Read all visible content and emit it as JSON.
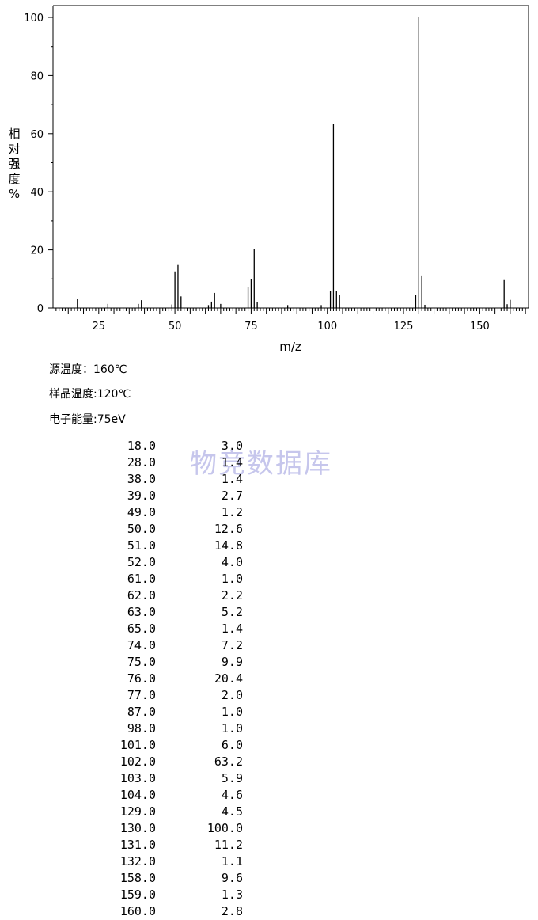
{
  "chart_data": {
    "type": "bar",
    "xlabel": "m/z",
    "ylabel": "相对强度%",
    "xlim": [
      10,
      166
    ],
    "ylim": [
      0,
      100
    ],
    "xticks": [
      25,
      50,
      75,
      100,
      125,
      150
    ],
    "yticks": [
      0,
      20,
      40,
      60,
      80,
      100
    ],
    "grid": false,
    "x": [
      18,
      28,
      38,
      39,
      49,
      50,
      51,
      52,
      61,
      62,
      63,
      65,
      74,
      75,
      76,
      77,
      87,
      98,
      101,
      102,
      103,
      104,
      129,
      130,
      131,
      132,
      158,
      159,
      160
    ],
    "values": [
      3.0,
      1.4,
      1.4,
      2.7,
      1.2,
      12.6,
      14.8,
      4.0,
      1.0,
      2.2,
      5.2,
      1.4,
      7.2,
      9.9,
      20.4,
      2.0,
      1.0,
      1.0,
      6.0,
      63.2,
      5.9,
      4.6,
      4.5,
      100.0,
      11.2,
      1.1,
      9.6,
      1.3,
      2.8
    ]
  },
  "conditions": {
    "source_temp": "源温度：160℃",
    "sample_temp": "样品温度:120℃",
    "electron_energy": "电子能量:75eV"
  },
  "watermark": "物竞数据库",
  "peaks": [
    {
      "mz": "18.0",
      "abundance": "3.0"
    },
    {
      "mz": "28.0",
      "abundance": "1.4"
    },
    {
      "mz": "38.0",
      "abundance": "1.4"
    },
    {
      "mz": "39.0",
      "abundance": "2.7"
    },
    {
      "mz": "49.0",
      "abundance": "1.2"
    },
    {
      "mz": "50.0",
      "abundance": "12.6"
    },
    {
      "mz": "51.0",
      "abundance": "14.8"
    },
    {
      "mz": "52.0",
      "abundance": "4.0"
    },
    {
      "mz": "61.0",
      "abundance": "1.0"
    },
    {
      "mz": "62.0",
      "abundance": "2.2"
    },
    {
      "mz": "63.0",
      "abundance": "5.2"
    },
    {
      "mz": "65.0",
      "abundance": "1.4"
    },
    {
      "mz": "74.0",
      "abundance": "7.2"
    },
    {
      "mz": "75.0",
      "abundance": "9.9"
    },
    {
      "mz": "76.0",
      "abundance": "20.4"
    },
    {
      "mz": "77.0",
      "abundance": "2.0"
    },
    {
      "mz": "87.0",
      "abundance": "1.0"
    },
    {
      "mz": "98.0",
      "abundance": "1.0"
    },
    {
      "mz": "101.0",
      "abundance": "6.0"
    },
    {
      "mz": "102.0",
      "abundance": "63.2"
    },
    {
      "mz": "103.0",
      "abundance": "5.9"
    },
    {
      "mz": "104.0",
      "abundance": "4.6"
    },
    {
      "mz": "129.0",
      "abundance": "4.5"
    },
    {
      "mz": "130.0",
      "abundance": "100.0"
    },
    {
      "mz": "131.0",
      "abundance": "11.2"
    },
    {
      "mz": "132.0",
      "abundance": "1.1"
    },
    {
      "mz": "158.0",
      "abundance": "9.6"
    },
    {
      "mz": "159.0",
      "abundance": "1.3"
    },
    {
      "mz": "160.0",
      "abundance": "2.8"
    }
  ]
}
